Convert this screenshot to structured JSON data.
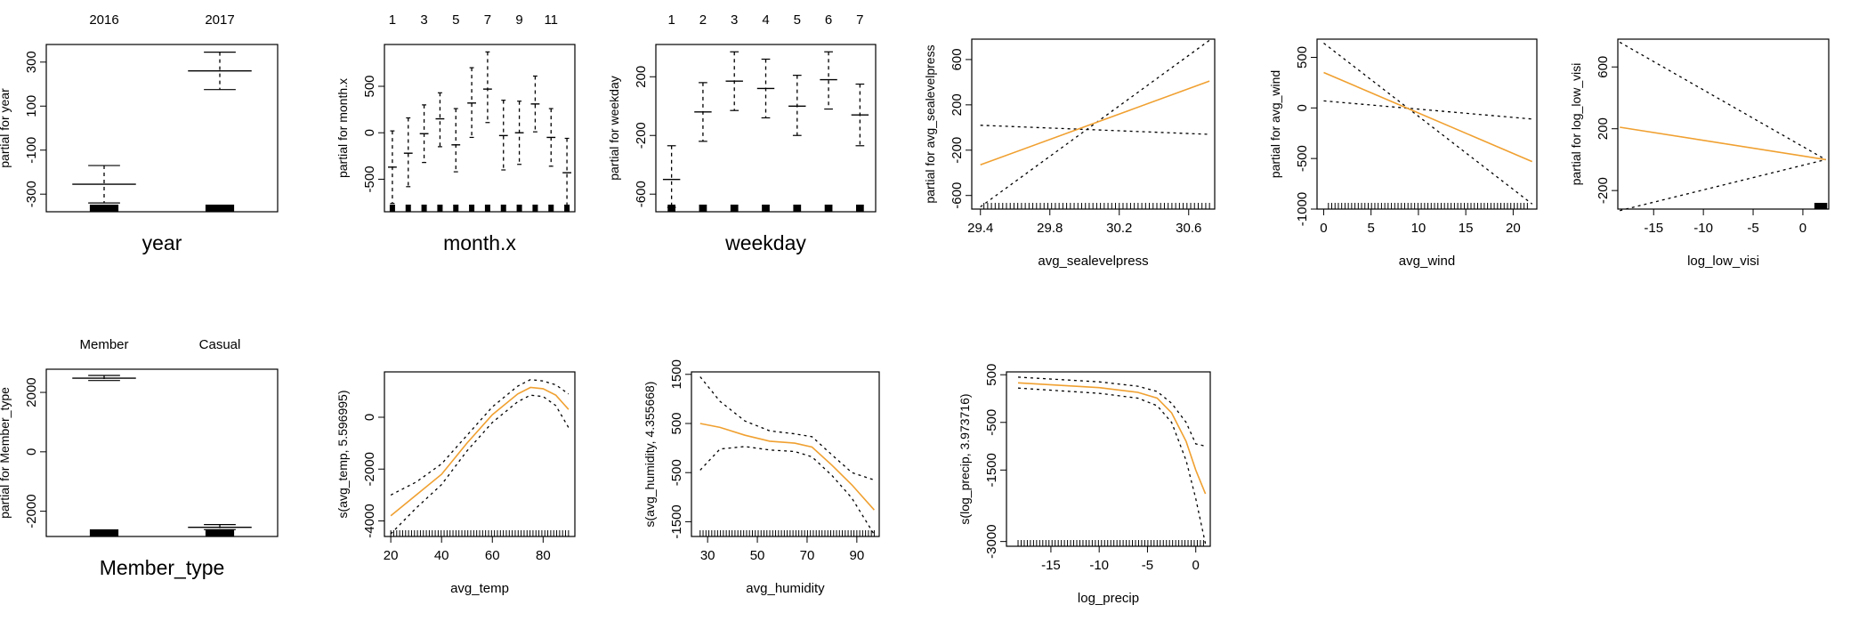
{
  "chart_data": [
    {
      "type": "box",
      "panel": "year",
      "categories": [
        "2016",
        "2017"
      ],
      "ylabel": "partial for year",
      "xlabel": "year",
      "yticks": [
        -300,
        -100,
        100,
        300
      ],
      "ylim": [
        -380,
        380
      ],
      "boxes": [
        {
          "category": "2016",
          "median": -255,
          "upper": -170,
          "lower": -340
        },
        {
          "category": "2017",
          "median": 260,
          "upper": 345,
          "lower": 175
        }
      ],
      "rug": [
        "2016",
        "2017"
      ]
    },
    {
      "type": "box",
      "panel": "month.x",
      "categories": [
        "1",
        "2",
        "3",
        "4",
        "5",
        "6",
        "7",
        "8",
        "9",
        "10",
        "11",
        "12"
      ],
      "top_labels": [
        "1",
        "3",
        "5",
        "7",
        "9",
        "11"
      ],
      "ylabel": "partial for month.x",
      "xlabel": "month.x",
      "yticks": [
        -500,
        0,
        500
      ],
      "ylim": [
        -850,
        950
      ],
      "boxes": [
        {
          "category": "1",
          "median": -370,
          "upper": 20,
          "lower": -760
        },
        {
          "category": "2",
          "median": -220,
          "upper": 160,
          "lower": -580
        },
        {
          "category": "3",
          "median": -10,
          "upper": 300,
          "lower": -320
        },
        {
          "category": "4",
          "median": 150,
          "upper": 430,
          "lower": -150
        },
        {
          "category": "5",
          "median": -130,
          "upper": 260,
          "lower": -420
        },
        {
          "category": "6",
          "median": 320,
          "upper": 700,
          "lower": -50
        },
        {
          "category": "7",
          "median": 470,
          "upper": 870,
          "lower": 110
        },
        {
          "category": "8",
          "median": -30,
          "upper": 350,
          "lower": -400
        },
        {
          "category": "9",
          "median": 0,
          "upper": 340,
          "lower": -340
        },
        {
          "category": "10",
          "median": 310,
          "upper": 610,
          "lower": 10
        },
        {
          "category": "11",
          "median": -50,
          "upper": 260,
          "lower": -360
        },
        {
          "category": "12",
          "median": -430,
          "upper": -60,
          "lower": -810
        }
      ]
    },
    {
      "type": "box",
      "panel": "weekday",
      "categories": [
        "1",
        "2",
        "3",
        "4",
        "5",
        "6",
        "7"
      ],
      "ylabel": "partial for weekday",
      "xlabel": "weekday",
      "yticks": [
        -600,
        -200,
        200
      ],
      "ylim": [
        -720,
        420
      ],
      "boxes": [
        {
          "category": "1",
          "median": -500,
          "upper": -270,
          "lower": -690
        },
        {
          "category": "2",
          "median": -40,
          "upper": 160,
          "lower": -240
        },
        {
          "category": "3",
          "median": 170,
          "upper": 370,
          "lower": -30
        },
        {
          "category": "4",
          "median": 120,
          "upper": 320,
          "lower": -80
        },
        {
          "category": "5",
          "median": 0,
          "upper": 210,
          "lower": -200
        },
        {
          "category": "6",
          "median": 180,
          "upper": 370,
          "lower": -20
        },
        {
          "category": "7",
          "median": -60,
          "upper": 150,
          "lower": -270
        }
      ]
    },
    {
      "type": "line",
      "panel": "avg_sealevelpress",
      "ylabel": "partial for avg_sealevelpress",
      "xlabel": "avg_sealevelpress",
      "xticks": [
        29.4,
        29.8,
        30.2,
        30.6
      ],
      "yticks": [
        -600,
        -200,
        200,
        600
      ],
      "xlim": [
        29.35,
        30.75
      ],
      "ylim": [
        -720,
        780
      ],
      "fit": [
        [
          29.4,
          -330
        ],
        [
          30.72,
          410
        ]
      ],
      "upper": [
        [
          29.4,
          20
        ],
        [
          30.72,
          -60
        ]
      ],
      "lower": [
        [
          29.4,
          -700
        ],
        [
          30.72,
          770
        ]
      ],
      "rug_range": [
        29.42,
        30.72
      ]
    },
    {
      "type": "line",
      "panel": "avg_wind",
      "ylabel": "partial for avg_wind",
      "xlabel": "avg_wind",
      "xticks": [
        0,
        5,
        10,
        15,
        20
      ],
      "yticks": [
        -1000,
        -500,
        0,
        500
      ],
      "xlim": [
        -0.7,
        22.5
      ],
      "ylim": [
        -1000,
        680
      ],
      "fit": [
        [
          0,
          350
        ],
        [
          22,
          -530
        ]
      ],
      "upper": [
        [
          0,
          640
        ],
        [
          22,
          -950
        ]
      ],
      "lower": [
        [
          0,
          70
        ],
        [
          22,
          -110
        ]
      ],
      "rug_range": [
        0.5,
        21.5
      ]
    },
    {
      "type": "line",
      "panel": "log_low_visi",
      "ylabel": "partial for log_low_visi",
      "xlabel": "log_low_visi",
      "xticks": [
        -15,
        -10,
        -5,
        0
      ],
      "yticks": [
        -200,
        200,
        600
      ],
      "xlim": [
        -18.6,
        2.6
      ],
      "ylim": [
        -320,
        780
      ],
      "fit": [
        [
          -18.4,
          210
        ],
        [
          2.3,
          0
        ]
      ],
      "upper": [
        [
          -18.4,
          760
        ],
        [
          2.3,
          0
        ]
      ],
      "lower": [
        [
          -18.4,
          -330
        ],
        [
          2.3,
          0
        ]
      ],
      "rug_range": [
        1.2,
        2.4
      ]
    },
    {
      "type": "box",
      "panel": "Member_type",
      "categories": [
        "Member",
        "Casual"
      ],
      "ylabel": "partial for Member_type",
      "xlabel": "Member_type",
      "yticks": [
        -2000,
        0,
        2000
      ],
      "ylim": [
        -2850,
        2780
      ],
      "boxes": [
        {
          "category": "Member",
          "median": 2480,
          "upper": 2570,
          "lower": 2400
        },
        {
          "category": "Casual",
          "median": -2540,
          "upper": -2450,
          "lower": -2620
        }
      ]
    },
    {
      "type": "line",
      "panel": "avg_temp",
      "ylabel": "s(avg_temp, 5.596995)",
      "xlabel": "avg_temp",
      "xticks": [
        20,
        40,
        60,
        80
      ],
      "yticks": [
        -4000,
        -2000,
        0
      ],
      "xlim": [
        17.5,
        92.5
      ],
      "ylim": [
        -4600,
        1750
      ],
      "fit": [
        [
          20,
          -3800
        ],
        [
          30,
          -3000
        ],
        [
          40,
          -2200
        ],
        [
          50,
          -1000
        ],
        [
          60,
          100
        ],
        [
          70,
          900
        ],
        [
          75,
          1150
        ],
        [
          80,
          1100
        ],
        [
          85,
          850
        ],
        [
          90,
          300
        ]
      ],
      "upper": [
        [
          20,
          -3000
        ],
        [
          30,
          -2500
        ],
        [
          40,
          -1800
        ],
        [
          50,
          -700
        ],
        [
          60,
          400
        ],
        [
          70,
          1200
        ],
        [
          75,
          1450
        ],
        [
          80,
          1400
        ],
        [
          85,
          1250
        ],
        [
          90,
          900
        ]
      ],
      "lower": [
        [
          20,
          -4500
        ],
        [
          30,
          -3500
        ],
        [
          40,
          -2600
        ],
        [
          50,
          -1300
        ],
        [
          60,
          -200
        ],
        [
          70,
          600
        ],
        [
          75,
          850
        ],
        [
          80,
          800
        ],
        [
          85,
          450
        ],
        [
          90,
          -400
        ]
      ],
      "rug_range": [
        20,
        90
      ]
    },
    {
      "type": "line",
      "panel": "avg_humidity",
      "ylabel": "s(avg_humidity, 4.355668)",
      "xlabel": "avg_humidity",
      "xticks": [
        30,
        50,
        70,
        90
      ],
      "yticks": [
        -1500,
        -500,
        500,
        1500
      ],
      "xlim": [
        23.5,
        99
      ],
      "ylim": [
        -1800,
        1550
      ],
      "fit": [
        [
          27,
          500
        ],
        [
          35,
          420
        ],
        [
          45,
          260
        ],
        [
          55,
          140
        ],
        [
          65,
          100
        ],
        [
          72,
          20
        ],
        [
          80,
          -350
        ],
        [
          88,
          -750
        ],
        [
          97,
          -1260
        ]
      ],
      "upper": [
        [
          27,
          1450
        ],
        [
          35,
          950
        ],
        [
          45,
          550
        ],
        [
          55,
          350
        ],
        [
          65,
          290
        ],
        [
          72,
          230
        ],
        [
          80,
          -140
        ],
        [
          88,
          -500
        ],
        [
          97,
          -650
        ]
      ],
      "lower": [
        [
          27,
          -450
        ],
        [
          35,
          -20
        ],
        [
          45,
          30
        ],
        [
          55,
          -40
        ],
        [
          65,
          -70
        ],
        [
          72,
          -180
        ],
        [
          80,
          -560
        ],
        [
          88,
          -1020
        ],
        [
          97,
          -1760
        ]
      ],
      "rug_range": [
        27,
        97
      ]
    },
    {
      "type": "line",
      "panel": "log_precip",
      "ylabel": "s(log_precip, 3.973716)",
      "xlabel": "log_precip",
      "xticks": [
        -15,
        -10,
        -5,
        0
      ],
      "yticks": [
        -3000,
        -1500,
        -500,
        500
      ],
      "xlim": [
        -19.6,
        1.5
      ],
      "ylim": [
        -3100,
        560
      ],
      "fit": [
        [
          -18.4,
          330
        ],
        [
          -10,
          230
        ],
        [
          -6,
          130
        ],
        [
          -4,
          10
        ],
        [
          -2.5,
          -300
        ],
        [
          -1,
          -900
        ],
        [
          0,
          -1500
        ],
        [
          1,
          -2000
        ]
      ],
      "upper": [
        [
          -18.4,
          450
        ],
        [
          -10,
          350
        ],
        [
          -6,
          260
        ],
        [
          -4,
          150
        ],
        [
          -2.5,
          -100
        ],
        [
          -1,
          -500
        ],
        [
          0,
          -950
        ],
        [
          1,
          -1000
        ]
      ],
      "lower": [
        [
          -18.4,
          220
        ],
        [
          -10,
          110
        ],
        [
          -6,
          10
        ],
        [
          -4,
          -150
        ],
        [
          -2.5,
          -500
        ],
        [
          -1,
          -1300
        ],
        [
          0,
          -2100
        ],
        [
          1,
          -3050
        ]
      ],
      "rug_range": [
        -18.4,
        0.8
      ]
    }
  ]
}
